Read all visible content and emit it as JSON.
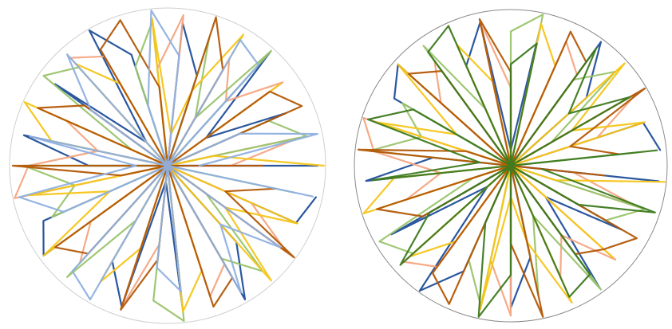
{
  "chart_data": [
    {
      "type": "polar_line",
      "grid": true,
      "rlim": [
        0,
        1
      ],
      "x": [
        0,
        12,
        24,
        36,
        48,
        60,
        72,
        84,
        96,
        108,
        120,
        132,
        144,
        156,
        168,
        180,
        192,
        204,
        216,
        228,
        240,
        252,
        264,
        276,
        288,
        300,
        312,
        324,
        336,
        348
      ],
      "series": [
        {
          "color": "#1f4e99",
          "values": [
            0.95,
            0,
            0.82,
            0.3,
            0.97,
            0,
            0.6,
            0.91,
            0,
            0.74,
            0.99,
            0.2,
            0.88,
            0,
            0.93,
            0.5,
            0,
            0.86,
            0.97,
            0,
            0.7,
            0.94,
            0.1,
            0.9,
            0,
            0.98,
            0.65,
            0,
            0.89,
            0.96
          ]
        },
        {
          "color": "#f4a582",
          "values": [
            0.4,
            0.85,
            0,
            0.9,
            0.55,
            0.78,
            0,
            0.96,
            0.62,
            0,
            0.8,
            0.92,
            0,
            0.7,
            0.45,
            0.88,
            0.99,
            0,
            0.6,
            0.83,
            0,
            0.95,
            0.5,
            0,
            0.87,
            0.72,
            0,
            0.93,
            0.58,
            0
          ]
        },
        {
          "color": "#9ac46b",
          "values": [
            0,
            0.9,
            0.7,
            0,
            0.98,
            0.35,
            0.85,
            0,
            0.92,
            0.66,
            0,
            0.84,
            0.97,
            0.25,
            0,
            0.91,
            0.6,
            0.8,
            0,
            0.95,
            0.4,
            0,
            0.86,
            0.99,
            0,
            0.68,
            0.9,
            0.3,
            0,
            0.82
          ]
        },
        {
          "color": "#f5c518",
          "values": [
            0.99,
            0.3,
            0,
            0.88,
            0,
            0.96,
            0.5,
            0.2,
            0.94,
            0,
            0.6,
            0.87,
            0,
            0.99,
            0.75,
            0,
            0.9,
            0.4,
            0.97,
            0,
            0.85,
            0.55,
            0,
            0.93,
            0.7,
            0,
            0.98,
            0.45,
            0.9,
            0
          ]
        },
        {
          "color": "#b35806",
          "values": [
            0.6,
            0,
            0.93,
            0.8,
            0,
            0.7,
            0.99,
            0,
            0.5,
            0.97,
            0.85,
            0,
            0.65,
            0.9,
            0,
            0.98,
            0.3,
            0,
            0.88,
            0.75,
            0,
            0.96,
            0.6,
            0,
            0.94,
            0.82,
            0,
            0.99,
            0.4,
            0.7
          ]
        },
        {
          "color": "#8fb0e0",
          "values": [
            0.2,
            0.97,
            0.5,
            0,
            0.86,
            0.92,
            0,
            0.7,
            0.99,
            0.4,
            0,
            0.95,
            0.6,
            0,
            0.89,
            0.2,
            0.96,
            0.72,
            0,
            0.9,
            0.98,
            0,
            0.65,
            0.8,
            0,
            0.93,
            0.5,
            0.88,
            0,
            0.94
          ]
        }
      ]
    },
    {
      "type": "polar_line",
      "grid": true,
      "rlim": [
        0,
        1
      ],
      "x": [
        6,
        18,
        30,
        42,
        54,
        66,
        78,
        90,
        102,
        114,
        126,
        138,
        150,
        162,
        174,
        186,
        198,
        210,
        222,
        234,
        246,
        258,
        270,
        282,
        294,
        306,
        318,
        330,
        342,
        354
      ],
      "series": [
        {
          "color": "#1f4e99",
          "values": [
            0.96,
            0.89,
            0,
            0.65,
            0.98,
            0,
            0.9,
            0.1,
            0.94,
            0.7,
            0,
            0.97,
            0.86,
            0,
            0.5,
            0.93,
            0,
            0.88,
            0.2,
            0.99,
            0.74,
            0,
            0.91,
            0.6,
            0,
            0.97,
            0.3,
            0.82,
            0,
            0.95
          ]
        },
        {
          "color": "#f4a582",
          "values": [
            0,
            0.58,
            0.93,
            0,
            0.72,
            0.87,
            0,
            0.5,
            0.95,
            0,
            0.83,
            0.6,
            0,
            0.99,
            0.88,
            0.45,
            0.7,
            0,
            0.92,
            0.8,
            0,
            0.62,
            0.96,
            0,
            0.78,
            0.55,
            0.9,
            0,
            0.85,
            0.4
          ]
        },
        {
          "color": "#9ac46b",
          "values": [
            0.82,
            0,
            0.3,
            0.9,
            0.68,
            0,
            0.99,
            0.86,
            0,
            0.4,
            0.95,
            0,
            0.8,
            0.6,
            0.91,
            0,
            0.25,
            0.97,
            0.84,
            0,
            0.66,
            0.92,
            0,
            0.85,
            0.35,
            0.98,
            0,
            0.7,
            0.9,
            0
          ]
        },
        {
          "color": "#f5c518",
          "values": [
            0,
            0.9,
            0.45,
            0.98,
            0,
            0.7,
            0.93,
            0,
            0.55,
            0.85,
            0,
            0.97,
            0.4,
            0.9,
            0,
            0.75,
            0.99,
            0,
            0.87,
            0.6,
            0,
            0.94,
            0.2,
            0.5,
            0.96,
            0,
            0.88,
            0,
            0.3,
            0.99
          ]
        },
        {
          "color": "#b35806",
          "values": [
            0.7,
            0.4,
            0.99,
            0,
            0.82,
            0.94,
            0,
            0.6,
            0.96,
            0,
            0.75,
            0.88,
            0,
            0.3,
            0.98,
            0,
            0.9,
            0.65,
            0,
            0.85,
            0.97,
            0,
            0.5,
            0.99,
            0,
            0.7,
            0.8,
            0.93,
            0,
            0.6
          ]
        },
        {
          "color": "#3d7a1e",
          "values": [
            0.94,
            0,
            0.88,
            0.5,
            0.93,
            0,
            0.8,
            0.65,
            0,
            0.98,
            0.9,
            0,
            0.72,
            0.96,
            0.2,
            0.89,
            0,
            0.6,
            0.95,
            0,
            0.4,
            0.99,
            0.7,
            0,
            0.92,
            0.86,
            0,
            0.5,
            0.97,
            0.2
          ]
        }
      ]
    }
  ]
}
